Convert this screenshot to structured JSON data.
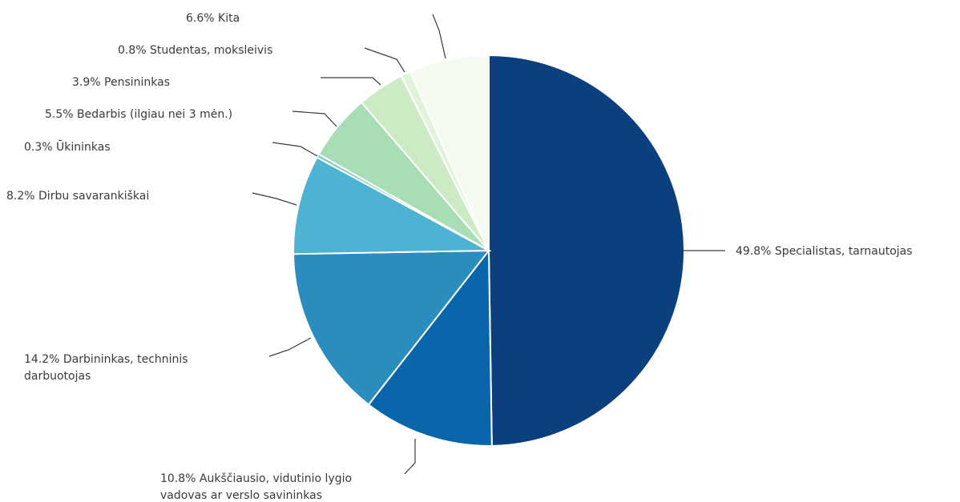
{
  "chart_data": {
    "type": "pie",
    "title": "",
    "start": "top",
    "direction": "clockwise",
    "slices": [
      {
        "label": "49.8% Specialistas, tarnautojas",
        "value": 49.8,
        "color": "#0b3f7e"
      },
      {
        "label": "10.8% Aukščiausio, vidutinio lygio vadovas ar verslo savininkas",
        "value": 10.8,
        "color": "#0a66ab"
      },
      {
        "label": "14.2% Darbininkas, techninis darbuotojas",
        "value": 14.2,
        "color": "#2b8cbe"
      },
      {
        "label": "8.2% Dirbu savarankiškai",
        "value": 8.2,
        "color": "#4eb3d3"
      },
      {
        "label": "0.3% Ūkininkas",
        "value": 0.3,
        "color": "#7bccc4"
      },
      {
        "label": "5.5% Bedarbis (ilgiau nei 3 mėn.)",
        "value": 5.5,
        "color": "#a8ddb5"
      },
      {
        "label": "3.9% Pensininkas",
        "value": 3.9,
        "color": "#ccebc5"
      },
      {
        "label": "0.8% Studentas, moksleivis",
        "value": 0.8,
        "color": "#e0f3db"
      },
      {
        "label": "6.6% Kita",
        "value": 6.6,
        "color": "#f5fbf1"
      }
    ]
  }
}
